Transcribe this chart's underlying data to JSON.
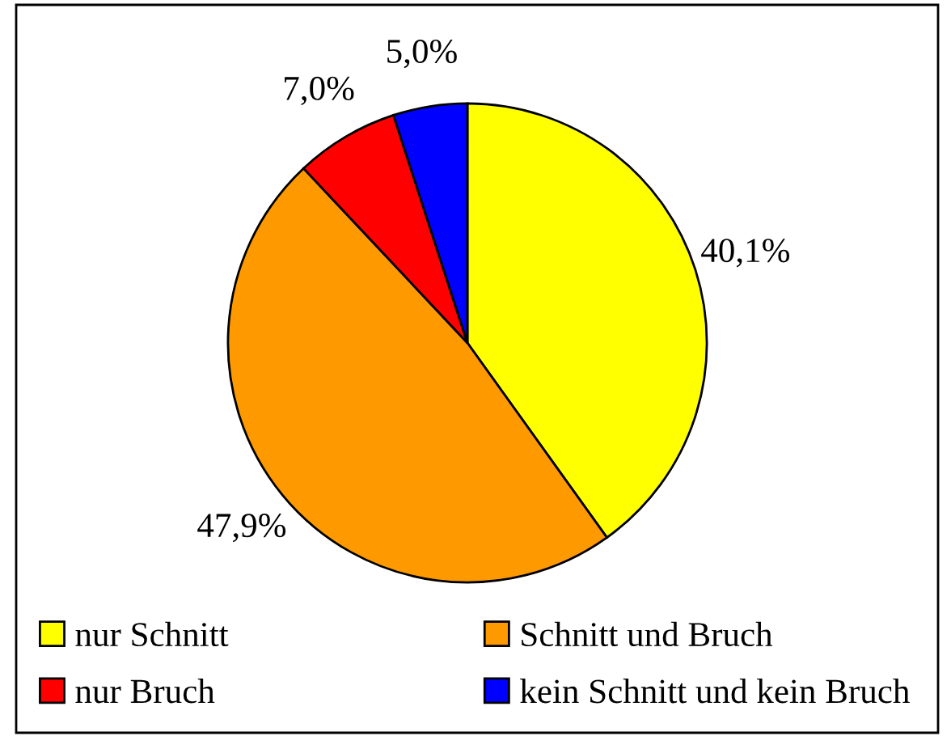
{
  "chart_data": {
    "type": "pie",
    "categories": [
      "nur Schnitt",
      "Schnitt und Bruch",
      "nur Bruch",
      "kein Schnitt und kein Bruch"
    ],
    "values": [
      40.1,
      47.9,
      7.0,
      5.0
    ],
    "colors": [
      "#ffff00",
      "#ff9900",
      "#ff0000",
      "#0000ff"
    ],
    "value_labels": [
      "40,1%",
      "47,9%",
      "7,0%",
      "5,0%"
    ],
    "legend": "bottom"
  }
}
